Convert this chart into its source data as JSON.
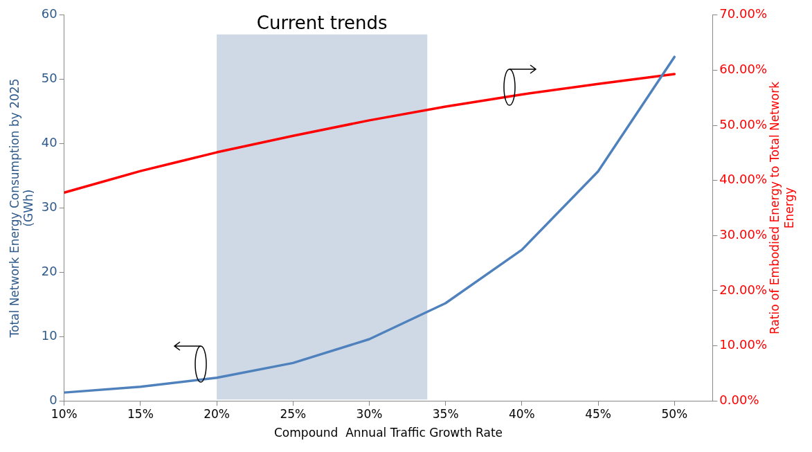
{
  "chart_data": {
    "type": "line",
    "xlabel": "Compound  Annual Traffic Growth Rate",
    "ylabel": "Total Network Energy Consumption by 2025\n(GWh)",
    "y2label": "Ratio of Embodied Energy to Total Network\nEnergy",
    "x": [
      10,
      15,
      20,
      25,
      30,
      35,
      40,
      45,
      50
    ],
    "xlim": [
      10,
      52.5
    ],
    "xticks": [
      {
        "value": 10,
        "label": "10%"
      },
      {
        "value": 15,
        "label": "15%"
      },
      {
        "value": 20,
        "label": "20%"
      },
      {
        "value": 25,
        "label": "25%"
      },
      {
        "value": 30,
        "label": "30%"
      },
      {
        "value": 35,
        "label": "35%"
      },
      {
        "value": 40,
        "label": "40%"
      },
      {
        "value": 45,
        "label": "45%"
      },
      {
        "value": 50,
        "label": "50%"
      }
    ],
    "ylim": [
      0,
      60
    ],
    "yticks": [
      0,
      10,
      20,
      30,
      40,
      50,
      60
    ],
    "y2lim": [
      0,
      70
    ],
    "y2ticks": [
      {
        "value": 0,
        "label": "0.00%"
      },
      {
        "value": 10,
        "label": "10.00%"
      },
      {
        "value": 20,
        "label": "20.00%"
      },
      {
        "value": 30,
        "label": "30.00%"
      },
      {
        "value": 40,
        "label": "40.00%"
      },
      {
        "value": 50,
        "label": "50.00%"
      },
      {
        "value": 60,
        "label": "60.00%"
      },
      {
        "value": 70,
        "label": "70.00%"
      }
    ],
    "series": [
      {
        "color": "#4f81bd",
        "values": [
          1.3,
          2.2,
          3.6,
          5.9,
          9.6,
          15.2,
          23.5,
          35.7,
          53.5
        ]
      },
      {
        "color": "#ff0000",
        "axis": "y2",
        "values": [
          37.8,
          41.7,
          45.1,
          48.1,
          50.9,
          53.4,
          55.6,
          57.5,
          59.3
        ]
      }
    ],
    "bands": [
      {
        "axis": "x",
        "from": 20,
        "to": 33.8,
        "label": "Current trends",
        "color": "#cfd9e5"
      }
    ],
    "grid": false,
    "legend": false,
    "marker": "none",
    "line_style": "solid"
  }
}
